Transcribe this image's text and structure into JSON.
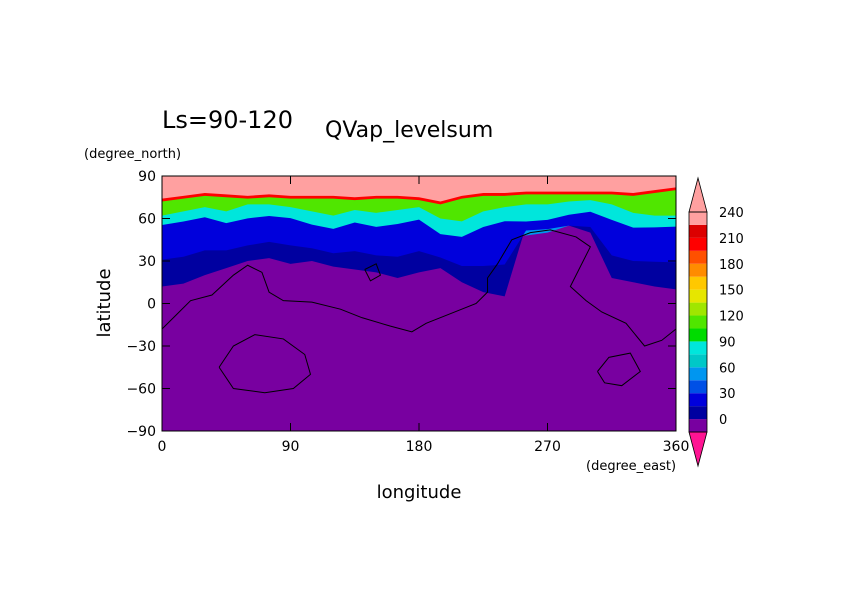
{
  "chart_data": {
    "type": "heatmap",
    "title": "Ls=90-120",
    "subtitle": "QVap_levelsum",
    "xlabel": "longitude",
    "ylabel": "latitude",
    "x_unit": "(degree_east)",
    "y_unit": "(degree_north)",
    "xlim": [
      0,
      360
    ],
    "ylim": [
      -90,
      90
    ],
    "x_ticks": [
      "0",
      "90",
      "180",
      "270",
      "360"
    ],
    "y_ticks": [
      "90",
      "60",
      "30",
      "0",
      "−30",
      "−60",
      "−90"
    ],
    "x_tick_values": [
      0,
      90,
      180,
      270,
      360
    ],
    "y_tick_values": [
      90,
      60,
      30,
      0,
      -30,
      -60,
      -90
    ],
    "colorbar": {
      "levels": [
        0,
        15,
        30,
        45,
        60,
        75,
        90,
        105,
        120,
        135,
        150,
        165,
        180,
        195,
        210,
        225,
        240
      ],
      "tick_labels": [
        "0",
        "30",
        "60",
        "90",
        "120",
        "150",
        "180",
        "210",
        "240"
      ],
      "tick_values": [
        0,
        30,
        60,
        90,
        120,
        150,
        180,
        210,
        240
      ],
      "colors": [
        "#7800a0",
        "#0000a0",
        "#0000dc",
        "#0050e6",
        "#0096f0",
        "#00c8c8",
        "#00e6dc",
        "#00dc00",
        "#50e600",
        "#a0e600",
        "#e6e600",
        "#ffc800",
        "#ff8c00",
        "#ff5000",
        "#ff0000",
        "#dc0000",
        "#ffa0a0"
      ],
      "under_color": "#ff1493",
      "over_color": "#ffa0a0"
    },
    "field_description_levels": {
      "lat_thresholds_by_longitude": {
        "lon": [
          0,
          15,
          30,
          45,
          60,
          75,
          90,
          105,
          120,
          135,
          150,
          165,
          180,
          195,
          210,
          225,
          240,
          255,
          270,
          285,
          300,
          315,
          330,
          345,
          360
        ],
        "level_15_lat": [
          12,
          14,
          20,
          25,
          30,
          32,
          28,
          30,
          26,
          24,
          22,
          18,
          22,
          25,
          15,
          8,
          5,
          55,
          55,
          55,
          50,
          18,
          15,
          12,
          10
        ],
        "level_60_lat": [
          50,
          52,
          55,
          50,
          52,
          55,
          54,
          48,
          45,
          50,
          46,
          48,
          52,
          40,
          38,
          45,
          50,
          48,
          50,
          55,
          58,
          50,
          45,
          47,
          48
        ],
        "level_120_lat": [
          62,
          65,
          68,
          65,
          70,
          70,
          68,
          65,
          62,
          66,
          64,
          66,
          68,
          60,
          58,
          65,
          68,
          70,
          70,
          72,
          73,
          70,
          64,
          62,
          62
        ],
        "level_210_lat": [
          72,
          74,
          76,
          75,
          74,
          75,
          74,
          74,
          74,
          73,
          74,
          74,
          73,
          70,
          74,
          76,
          76,
          77,
          77,
          77,
          77,
          77,
          76,
          78,
          80
        ]
      }
    }
  }
}
